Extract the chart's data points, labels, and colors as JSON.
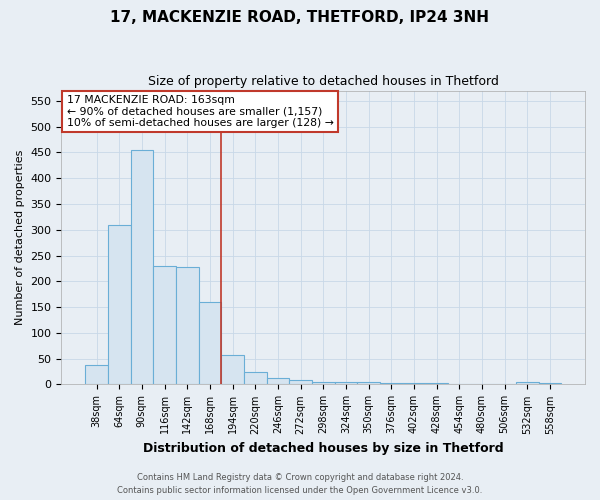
{
  "title1": "17, MACKENZIE ROAD, THETFORD, IP24 3NH",
  "title2": "Size of property relative to detached houses in Thetford",
  "xlabel": "Distribution of detached houses by size in Thetford",
  "ylabel": "Number of detached properties",
  "categories": [
    "38sqm",
    "64sqm",
    "90sqm",
    "116sqm",
    "142sqm",
    "168sqm",
    "194sqm",
    "220sqm",
    "246sqm",
    "272sqm",
    "298sqm",
    "324sqm",
    "350sqm",
    "376sqm",
    "402sqm",
    "428sqm",
    "454sqm",
    "480sqm",
    "506sqm",
    "532sqm",
    "558sqm"
  ],
  "values": [
    38,
    310,
    455,
    230,
    228,
    160,
    58,
    25,
    12,
    9,
    5,
    5,
    5,
    2,
    2,
    3,
    1,
    1,
    1,
    5,
    3
  ],
  "bar_color": "#d6e4f0",
  "bar_edge_color": "#6aaed6",
  "grid_color": "#c8d8e8",
  "vline_x": 5.5,
  "vline_color": "#c0392b",
  "annotation_text": "17 MACKENZIE ROAD: 163sqm\n← 90% of detached houses are smaller (1,157)\n10% of semi-detached houses are larger (128) →",
  "annotation_box_color": "#ffffff",
  "annotation_box_edge_color": "#c0392b",
  "footer": "Contains HM Land Registry data © Crown copyright and database right 2024.\nContains public sector information licensed under the Open Government Licence v3.0.",
  "ylim": [
    0,
    570
  ],
  "background_color": "#e8eef4",
  "plot_background_color": "#e8eef4",
  "title1_fontsize": 11,
  "title2_fontsize": 9,
  "ylabel_fontsize": 8,
  "xlabel_fontsize": 9
}
